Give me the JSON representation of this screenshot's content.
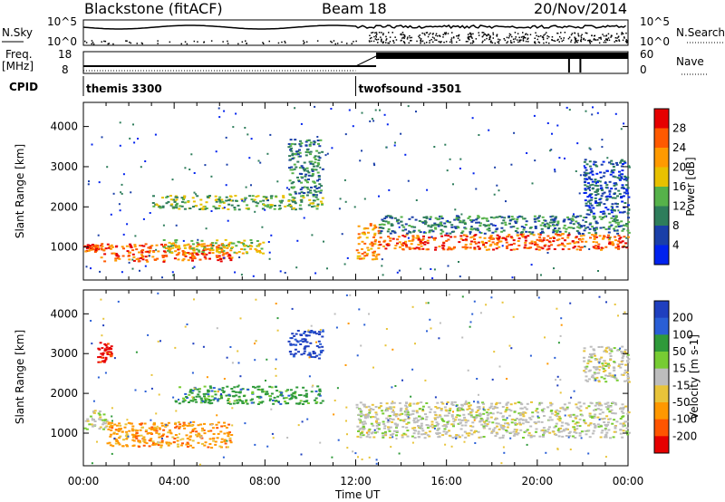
{
  "header": {
    "station": "Blackstone (fitACF)",
    "beam": "Beam 18",
    "date": "20/Nov/2014"
  },
  "top_panels": {
    "nsky_label": "N.Sky",
    "nsky_ticks": [
      "10^5",
      "10^0"
    ],
    "nsearch_label": "N.Search",
    "nsearch_ticks": [
      "10^5",
      "10^0"
    ],
    "freq_label": "Freq.",
    "freq_unit": "[MHz]",
    "freq_ticks": [
      "18",
      "8"
    ],
    "nave_label": "Nave",
    "nave_ticks": [
      "60",
      "0"
    ],
    "cpid_label": "CPID",
    "cpid_segments": [
      {
        "name": "themis 3300",
        "start_hour": 0.0,
        "end_hour": 12.0
      },
      {
        "name": "twofsound -3501",
        "start_hour": 12.0,
        "end_hour": 24.0
      }
    ]
  },
  "x_axis": {
    "title": "Time UT",
    "ticks": [
      "00:00",
      "04:00",
      "08:00",
      "12:00",
      "16:00",
      "20:00",
      "00:00"
    ],
    "range_hours": [
      0,
      24
    ]
  },
  "y_axis": {
    "title": "Slant Range [km]",
    "ticks": [
      "1000",
      "2000",
      "3000",
      "4000"
    ],
    "range_km": [
      180,
      4600
    ]
  },
  "colors": {
    "power_scale": [
      "#0022ee",
      "#1a3fa8",
      "#2e7d5b",
      "#56b24a",
      "#e8c100",
      "#ff9a00",
      "#ff5a00",
      "#e60000"
    ],
    "velocity_scale": [
      "#1f3fbf",
      "#2a5fd6",
      "#2f9a3a",
      "#77cc33",
      "#bdbdbd",
      "#e8c43a",
      "#ff9800",
      "#ff5500",
      "#e60000"
    ]
  },
  "chart_data": [
    {
      "type": "heatmap",
      "panel": "power",
      "title": "",
      "xlabel": "Time UT",
      "ylabel": "Slant Range [km]",
      "xlim": [
        0,
        24
      ],
      "ylim": [
        180,
        4600
      ],
      "colorbar": {
        "label": "Power [dB]",
        "ticks": [
          "4",
          "8",
          "12",
          "16",
          "20",
          "24",
          "28"
        ],
        "range": [
          0,
          32
        ]
      },
      "features": [
        {
          "hours": [
            0.0,
            0.6
          ],
          "range_km": [
            900,
            1100
          ],
          "value_db": 28
        },
        {
          "hours": [
            0.7,
            6.5
          ],
          "range_km": [
            650,
            1100
          ],
          "value_db": 26
        },
        {
          "hours": [
            3.5,
            8.0
          ],
          "range_km": [
            850,
            1200
          ],
          "value_db": 18
        },
        {
          "hours": [
            3.0,
            10.5
          ],
          "range_km": [
            1950,
            2300
          ],
          "value_db": 16
        },
        {
          "hours": [
            9.0,
            10.5
          ],
          "range_km": [
            2300,
            3700
          ],
          "value_db": 10
        },
        {
          "hours": [
            12.0,
            13.0
          ],
          "range_km": [
            700,
            1600
          ],
          "value_db": 24
        },
        {
          "hours": [
            13.0,
            24.0
          ],
          "range_km": [
            950,
            1350
          ],
          "value_db": 28
        },
        {
          "hours": [
            13.0,
            24.0
          ],
          "range_km": [
            1350,
            1800
          ],
          "value_db": 12
        },
        {
          "hours": [
            22.0,
            24.0
          ],
          "range_km": [
            1800,
            3200
          ],
          "value_db": 6
        }
      ]
    },
    {
      "type": "heatmap",
      "panel": "velocity",
      "title": "",
      "xlabel": "Time UT",
      "ylabel": "Slant Range [km]",
      "xlim": [
        0,
        24
      ],
      "ylim": [
        180,
        4600
      ],
      "colorbar": {
        "label": "Velocity [m s-1]",
        "ticks": [
          "200",
          "100",
          "50",
          "15",
          "-15",
          "-50",
          "-100",
          "-200"
        ],
        "range": [
          -250,
          250
        ]
      },
      "features": [
        {
          "hours": [
            0.0,
            1.0
          ],
          "range_km": [
            1100,
            1600
          ],
          "value_ms": 0
        },
        {
          "hours": [
            1.0,
            6.5
          ],
          "range_km": [
            650,
            1300
          ],
          "value_ms": -80
        },
        {
          "hours": [
            4.0,
            10.5
          ],
          "range_km": [
            1750,
            2200
          ],
          "value_ms": 60
        },
        {
          "hours": [
            9.0,
            10.5
          ],
          "range_km": [
            2900,
            3600
          ],
          "value_ms": 220
        },
        {
          "hours": [
            0.6,
            1.2
          ],
          "range_km": [
            2800,
            3300
          ],
          "value_ms": -220
        },
        {
          "hours": [
            12.0,
            24.0
          ],
          "range_km": [
            900,
            1800
          ],
          "value_ms": 0
        },
        {
          "hours": [
            22.0,
            24.0
          ],
          "range_km": [
            2300,
            3200
          ],
          "value_ms": 0
        }
      ]
    }
  ]
}
